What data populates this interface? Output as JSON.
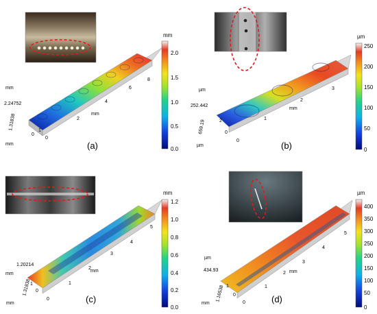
{
  "panels": [
    {
      "label": "(a)",
      "unit": "mm",
      "colorbar_ticks": [
        "2.0",
        "1.5",
        "1.0",
        "0.5",
        "0.0"
      ],
      "axis_values": [
        "2.24752",
        "1.31838"
      ],
      "length_ticks": [
        "0",
        "2",
        "4",
        "6",
        "8"
      ],
      "width_ticks": [
        "0",
        "1"
      ],
      "axis_units": [
        "mm",
        "mm",
        "mm"
      ],
      "description": "groove with row of spot welds"
    },
    {
      "label": "(b)",
      "unit": "µm",
      "colorbar_ticks": [
        "250",
        "200",
        "150",
        "100",
        "50",
        "0"
      ],
      "axis_values": [
        "252.442",
        "659.19"
      ],
      "length_ticks": [
        "0",
        "1",
        "2",
        "3"
      ],
      "width_ticks": [
        "0",
        "2"
      ],
      "axis_units": [
        "µm",
        "µm",
        "mm"
      ]
    },
    {
      "label": "(c)",
      "unit": "mm",
      "colorbar_ticks": [
        "1.2",
        "1.0",
        "0.8",
        "0.6",
        "0.4",
        "0.2",
        "0.0"
      ],
      "axis_values": [
        "1.20214",
        "1.31838"
      ],
      "length_ticks": [
        "0",
        "1",
        "2",
        "3",
        "4",
        "5"
      ],
      "width_ticks": [
        "0",
        "1"
      ],
      "axis_units": [
        "mm",
        "mm",
        "mm"
      ]
    },
    {
      "label": "(d)",
      "unit": "µm",
      "colorbar_ticks": [
        "400",
        "350",
        "300",
        "250",
        "200",
        "150",
        "100",
        "50",
        "0"
      ],
      "axis_values": [
        "434.93",
        "1.16538"
      ],
      "length_ticks": [
        "0",
        "1",
        "2",
        "3",
        "4",
        "5"
      ],
      "width_ticks": [
        "0",
        "1"
      ],
      "axis_units": [
        "µm",
        "mm",
        "mm"
      ]
    }
  ],
  "colormap": [
    "#0a0f8c",
    "#1a4fe0",
    "#10b6e6",
    "#20d080",
    "#9ae030",
    "#f2e020",
    "#f29020",
    "#e23a20",
    "#f0f0f0"
  ]
}
